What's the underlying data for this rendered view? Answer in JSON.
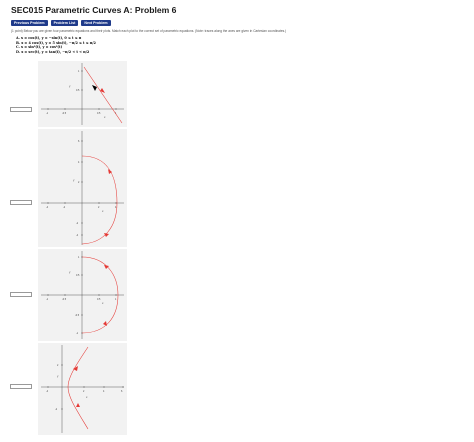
{
  "page": {
    "title": "SEC015 Parametric Curves A: Problem 6"
  },
  "nav": {
    "previous_label": "Previous Problem",
    "list_label": "Problem List",
    "next_label": "Next Problem"
  },
  "intro_text": "(1 point) Below you are given four parametric equations and their plots. Match each plot to the correct set of parametric equations. (Note: traces along the axes are given in Cartesian coordinates.)",
  "equations": [
    {
      "label": "A.",
      "text": "x = cos(t),   y = −sin(t),   0 ≤ t ≤ π"
    },
    {
      "label": "B.",
      "text": "x = 4 cos(t),   y = 5 sin(t),   −π/2 ≤ t ≤ π/2"
    },
    {
      "label": "C.",
      "text": "x = sin²(t),   y = cos²(t)"
    },
    {
      "label": "D.",
      "text": "x = sec(t),   y = tan(t),   −π/2 < t < π/2"
    }
  ],
  "graphs": [
    {
      "x_ticks": [
        "-1",
        "-0.5",
        "0.5",
        "1"
      ],
      "y_ticks": [
        "1",
        "0.5"
      ],
      "xlabel": "x",
      "ylabel": "y"
    },
    {
      "x_ticks": [
        "-4",
        "-2",
        "2",
        "4"
      ],
      "y_ticks": [
        "6",
        "4",
        "2",
        "-2",
        "-4"
      ],
      "xlabel": "x",
      "ylabel": "y"
    },
    {
      "x_ticks": [
        "-1",
        "-0.5",
        "0.5",
        "1"
      ],
      "y_ticks": [
        "1",
        "0.5",
        "-0.5",
        "-1"
      ],
      "xlabel": "x",
      "ylabel": "y"
    },
    {
      "x_ticks": [
        "-4",
        "2",
        "4",
        "6"
      ],
      "y_ticks": [
        "2",
        "-2"
      ],
      "xlabel": "x",
      "ylabel": "y"
    }
  ]
}
